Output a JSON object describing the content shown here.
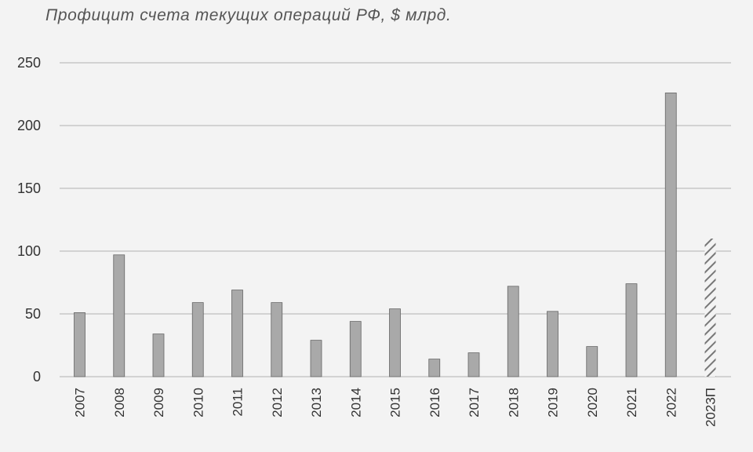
{
  "chart_data": {
    "type": "bar",
    "title": "Профицит счета текущих операций РФ, $ млрд.",
    "categories": [
      "2007",
      "2008",
      "2009",
      "2010",
      "2011",
      "2012",
      "2013",
      "2014",
      "2015",
      "2016",
      "2017",
      "2018",
      "2019",
      "2020",
      "2021",
      "2022",
      "2023П"
    ],
    "values": [
      51,
      97,
      34,
      59,
      69,
      59,
      29,
      44,
      54,
      14,
      19,
      72,
      52,
      24,
      74,
      226,
      110
    ],
    "forecast": [
      false,
      false,
      false,
      false,
      false,
      false,
      false,
      false,
      false,
      false,
      false,
      false,
      false,
      false,
      false,
      false,
      true
    ],
    "ylim": [
      0,
      250
    ],
    "yticks": [
      0,
      50,
      100,
      150,
      200,
      250
    ],
    "xlabel": "",
    "ylabel": "",
    "grid": true,
    "colors": {
      "bar": "#a9a9a9",
      "bar_edge": "#666666",
      "forecast_hatch": "#777777",
      "grid": "#b0b0b0"
    }
  }
}
